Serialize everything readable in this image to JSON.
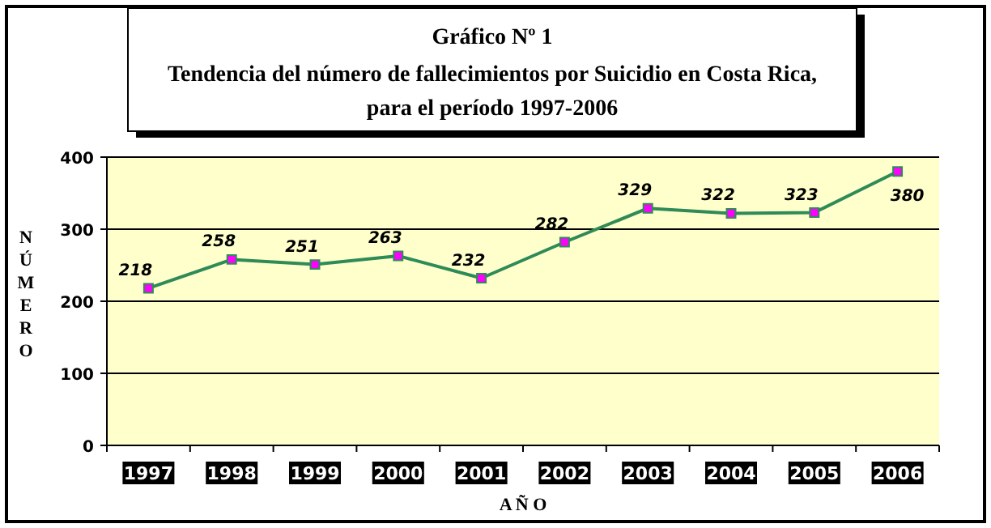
{
  "chart_data": {
    "type": "line",
    "title": "Gráfico Nº 1",
    "subtitle": "Tendencia del número de fallecimientos por Suicidio en Costa Rica,\npara el período 1997-2006",
    "xlabel": "A Ñ O",
    "ylabel": "NÚMERO",
    "categories": [
      "1997",
      "1998",
      "1999",
      "2000",
      "2001",
      "2002",
      "2003",
      "2004",
      "2005",
      "2006"
    ],
    "series": [
      {
        "color": "#2e8b57",
        "values": [
          218,
          258,
          251,
          263,
          232,
          282,
          329,
          322,
          323,
          380
        ]
      }
    ],
    "ylim": [
      0,
      400
    ],
    "yticks": [
      0,
      100,
      200,
      300,
      400
    ],
    "grid": "y",
    "marker": "square",
    "data_labels": true
  }
}
